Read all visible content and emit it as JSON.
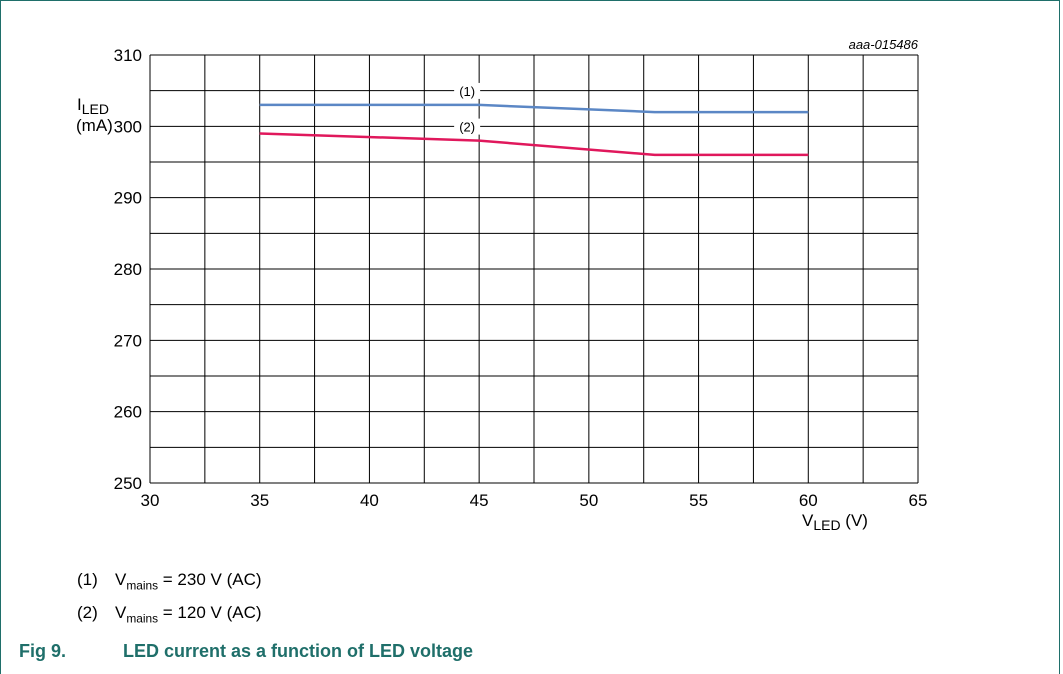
{
  "chart_data": {
    "type": "line",
    "figure_id": "aaa-015486",
    "xlabel_main": "V",
    "xlabel_sub": "LED",
    "xlabel_unit": " (V)",
    "ylabel_main": "I",
    "ylabel_sub": "LED",
    "ylabel_unit": "(mA)",
    "xlim": [
      30,
      65
    ],
    "ylim": [
      250,
      310
    ],
    "xticks": [
      30,
      35,
      40,
      45,
      50,
      55,
      60,
      65
    ],
    "yticks": [
      250,
      260,
      270,
      280,
      290,
      300,
      310
    ],
    "grid": true,
    "series": [
      {
        "name": "(1)",
        "color": "#5b87c5",
        "x": [
          35,
          45,
          53,
          60
        ],
        "y": [
          303,
          303,
          302,
          302
        ],
        "label_x": 45
      },
      {
        "name": "(2)",
        "color": "#e0185c",
        "x": [
          35,
          45,
          53,
          60
        ],
        "y": [
          299,
          298,
          296,
          296
        ],
        "label_x": 45
      }
    ]
  },
  "notes": [
    {
      "num": "(1)",
      "prefix": "V",
      "sub": "mains",
      "suffix": " = 230 V (AC)"
    },
    {
      "num": "(2)",
      "prefix": "V",
      "sub": "mains",
      "suffix": " = 120 V (AC)"
    }
  ],
  "caption": {
    "num": "Fig 9.",
    "text": "LED current as a function of LED voltage"
  }
}
